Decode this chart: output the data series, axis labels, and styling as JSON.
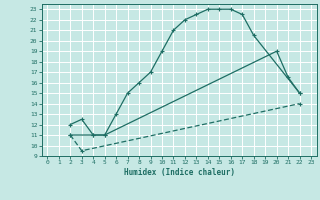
{
  "xlabel": "Humidex (Indice chaleur)",
  "xlim": [
    -0.5,
    23.5
  ],
  "ylim": [
    9,
    23.5
  ],
  "xticks": [
    0,
    1,
    2,
    3,
    4,
    5,
    6,
    7,
    8,
    9,
    10,
    11,
    12,
    13,
    14,
    15,
    16,
    17,
    18,
    19,
    20,
    21,
    22,
    23
  ],
  "yticks": [
    9,
    10,
    11,
    12,
    13,
    14,
    15,
    16,
    17,
    18,
    19,
    20,
    21,
    22,
    23
  ],
  "bg_color": "#c6e8e4",
  "grid_color": "#ffffff",
  "line_color": "#1e6e64",
  "curve1_x": [
    2,
    3,
    4,
    5,
    6,
    7,
    8,
    9,
    10,
    11,
    12,
    13,
    14,
    15,
    16,
    17,
    18,
    22
  ],
  "curve1_y": [
    12,
    12.5,
    11,
    11,
    13,
    15,
    16,
    17,
    19,
    21,
    22,
    22.5,
    23,
    23,
    23,
    22.5,
    20.5,
    15
  ],
  "curve2_x": [
    2,
    4,
    5,
    20,
    21,
    22
  ],
  "curve2_y": [
    11,
    11,
    11,
    19,
    16.5,
    15
  ],
  "curve3_x": [
    2,
    3,
    22
  ],
  "curve3_y": [
    11,
    9.5,
    14
  ]
}
